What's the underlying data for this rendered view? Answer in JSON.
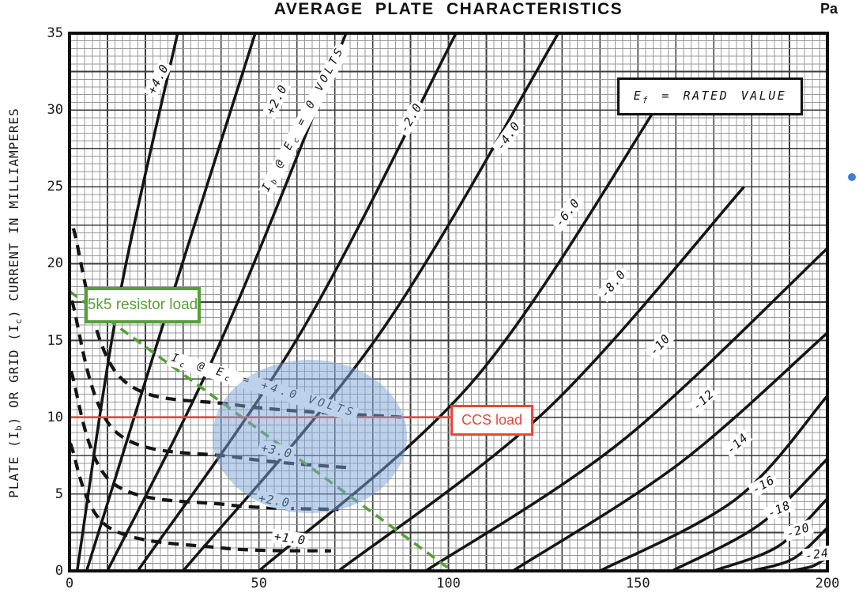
{
  "page": {
    "corner_text": "Pa"
  },
  "chart_data": {
    "type": "line",
    "title": "AVERAGE PLATE CHARACTERISTICS",
    "ylabel_rich": "PLATE (I~b~) OR GRID (I~c~) CURRENT IN MILLIAMPERES",
    "xlabel": "",
    "xlim": [
      0,
      200
    ],
    "ylim": [
      0,
      35
    ],
    "x_ticks": [
      0,
      50,
      100,
      150,
      200
    ],
    "y_ticks": [
      35,
      30,
      25,
      20,
      15,
      10,
      5,
      0
    ],
    "grid": {
      "minor_step_x": 2,
      "major_step_x": 10,
      "minor_step_y": 0.5,
      "major_step_y": 2.5,
      "on": true
    },
    "legend": {
      "text_rich": "E~f~ = RATED VALUE",
      "position": "top-right"
    },
    "plate_curves": [
      {
        "label": "+4.0",
        "ec_volts": 4,
        "points_v_ma": [
          [
            2,
            0
          ],
          [
            13,
            17.6
          ],
          [
            28.5,
            35
          ]
        ],
        "label_at": [
          23.4,
          32.0
        ],
        "label_angle": -63,
        "style": "solid"
      },
      {
        "label": "+2.0",
        "ec_volts": 2,
        "points_v_ma": [
          [
            4.5,
            0
          ],
          [
            24,
            15.5
          ],
          [
            49,
            35
          ]
        ],
        "label_at": [
          54.6,
          30.7
        ],
        "label_angle": -63,
        "style": "solid"
      },
      {
        "label": "I~b~ @ E~c~ = 0 VOLTS",
        "ec_volts": 0,
        "points_v_ma": [
          [
            10,
            0
          ],
          [
            40,
            15
          ],
          [
            73,
            35
          ]
        ],
        "label_at": [
          61.9,
          29.4
        ],
        "label_angle": -62,
        "style": "solid",
        "long": true
      },
      {
        "label": "-2.0",
        "ec_volts": -2,
        "points_v_ma": [
          [
            18,
            0
          ],
          [
            61,
            15.5
          ],
          [
            102,
            35
          ]
        ],
        "label_at": [
          90.1,
          29.5
        ],
        "label_angle": -60,
        "style": "solid"
      },
      {
        "label": "-4.0",
        "ec_volts": -4,
        "points_v_ma": [
          [
            30,
            0
          ],
          [
            82,
            15.5
          ],
          [
            129,
            35
          ]
        ],
        "label_at": [
          115.7,
          28.3
        ],
        "label_angle": -55,
        "style": "solid"
      },
      {
        "label": "-6.0",
        "ec_volts": -6,
        "points_v_ma": [
          [
            50,
            0
          ],
          [
            107,
            12.5
          ],
          [
            157,
            31
          ]
        ],
        "label_at": [
          131.4,
          23.3
        ],
        "label_angle": -52,
        "style": "solid"
      },
      {
        "label": "-8.0",
        "ec_volts": -8,
        "points_v_ma": [
          [
            71,
            0
          ],
          [
            126,
            10.5
          ],
          [
            178,
            25
          ]
        ],
        "label_at": [
          143.5,
          18.7
        ],
        "label_angle": -50,
        "style": "solid"
      },
      {
        "label": "-10",
        "ec_volts": -10,
        "points_v_ma": [
          [
            94,
            0
          ],
          [
            146,
            8.5
          ],
          [
            200,
            21
          ]
        ],
        "label_at": [
          155.8,
          14.7
        ],
        "label_angle": -47,
        "style": "solid"
      },
      {
        "label": "-12",
        "ec_volts": -12,
        "points_v_ma": [
          [
            117,
            0
          ],
          [
            161,
            7
          ],
          [
            200,
            15.5
          ]
        ],
        "label_at": [
          167.3,
          11.1
        ],
        "label_angle": -43,
        "style": "solid"
      },
      {
        "label": "-14",
        "ec_volts": -14,
        "points_v_ma": [
          [
            140,
            0
          ],
          [
            176,
            4.7
          ],
          [
            200,
            11.4
          ]
        ],
        "label_at": [
          176.2,
          8.3
        ],
        "label_angle": -42,
        "style": "solid"
      },
      {
        "label": "-16",
        "ec_volts": -16,
        "points_v_ma": [
          [
            159,
            0
          ],
          [
            182,
            3
          ],
          [
            200,
            7.3
          ]
        ],
        "label_at": [
          183.1,
          5.6
        ],
        "label_angle": -30,
        "style": "solid"
      },
      {
        "label": "-18",
        "ec_volts": -18,
        "points_v_ma": [
          [
            170,
            0
          ],
          [
            187,
            1.6
          ],
          [
            200,
            4.7
          ]
        ],
        "label_at": [
          187.3,
          4.0
        ],
        "label_angle": -24,
        "style": "solid"
      },
      {
        "label": "-20",
        "ec_volts": -20,
        "points_v_ma": [
          [
            180,
            0
          ],
          [
            191,
            0.8
          ],
          [
            200,
            2.8
          ]
        ],
        "label_at": [
          192.3,
          2.6
        ],
        "label_angle": -18,
        "style": "solid"
      },
      {
        "label": "-24",
        "ec_volts": -24,
        "points_v_ma": [
          [
            190,
            0
          ],
          [
            196,
            0.3
          ],
          [
            200,
            0.9
          ]
        ],
        "label_at": [
          197.3,
          1.1
        ],
        "label_angle": -8,
        "style": "solid"
      }
    ],
    "grid_current_curves": [
      {
        "label": "I~c~ @ E~c~ = +4.0 VOLTS",
        "ec_volts": 4,
        "points_v_ma": [
          [
            1,
            22.3
          ],
          [
            13,
            12.7
          ],
          [
            44,
            10.8
          ],
          [
            88,
            10
          ]
        ],
        "label_at": [
          51.1,
          12.0
        ],
        "label_angle": 17,
        "style": "dashed",
        "long": true
      },
      {
        "label": "+3.0",
        "ec_volts": 3,
        "points_v_ma": [
          [
            0.6,
            17.6
          ],
          [
            12,
            9.1
          ],
          [
            44,
            7.4
          ],
          [
            74.5,
            6.7
          ]
        ],
        "label_at": [
          54.6,
          7.8
        ],
        "label_angle": 12,
        "style": "dashed"
      },
      {
        "label": "+2.0",
        "ec_volts": 2,
        "points_v_ma": [
          [
            0.4,
            13
          ],
          [
            11,
            5.8
          ],
          [
            42,
            4.3
          ],
          [
            71,
            4
          ]
        ],
        "label_at": [
          54.0,
          4.6
        ],
        "label_angle": 10,
        "style": "dashed"
      },
      {
        "label": "+1.0",
        "ec_volts": 1,
        "points_v_ma": [
          [
            0.2,
            8.3
          ],
          [
            10,
            2.9
          ],
          [
            40,
            1.5
          ],
          [
            69,
            1.3
          ]
        ],
        "label_at": [
          58.2,
          2.1
        ],
        "label_angle": 8,
        "style": "dashed"
      }
    ],
    "annotations": {
      "resistor_load_line": {
        "label": "5k5 resistor load",
        "color": "#55a036",
        "style": "dashed",
        "from_v_ma": [
          0,
          18.2
        ],
        "to_v_ma": [
          101,
          0
        ]
      },
      "ccs_load_line": {
        "label": "CCS load",
        "color": "#e8463a",
        "style": "solid",
        "at_ma": 10,
        "from_v": 0,
        "to_v": 101
      },
      "highlight_ellipse": {
        "color": "#7da3d8",
        "opacity": 0.5,
        "center_v_ma": [
          63.4,
          8.75
        ],
        "rx_v": 25.6,
        "ry_ma": 5.0
      },
      "blue_dot": {
        "color": "#3f7fd4"
      }
    },
    "colors": {
      "curves": "#151515",
      "grid_minor": "#9a9a9a",
      "grid_major": "#3c3c3c",
      "frame": "#0d0d0d"
    }
  }
}
